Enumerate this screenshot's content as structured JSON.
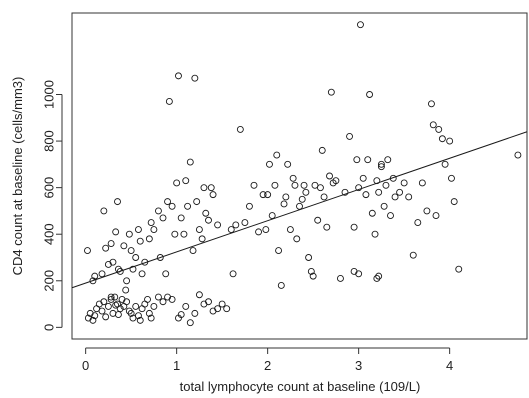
{
  "chart_data": {
    "type": "scatter",
    "title": "",
    "xlabel": "total lymphocyte count at baseline (109/L)",
    "ylabel": "CD4 count at baseline (cells/mm3)",
    "xlim": [
      -0.15,
      4.85
    ],
    "ylim": [
      -50,
      1350
    ],
    "x_ticks": [
      0,
      1,
      2,
      3,
      4
    ],
    "y_ticks": [
      0,
      200,
      400,
      600,
      800,
      1000
    ],
    "point_style": "open-circle",
    "grid": false,
    "legend": "none",
    "colors": {
      "points": "#1a1a1a",
      "line": "#1a1a1a",
      "frame": "#333333"
    },
    "regression_line": {
      "x": [
        -0.15,
        4.85
      ],
      "y": [
        170,
        840
      ]
    },
    "points": [
      [
        0.03,
        40
      ],
      [
        0.05,
        60
      ],
      [
        0.08,
        30
      ],
      [
        0.1,
        50
      ],
      [
        0.12,
        80
      ],
      [
        0.15,
        100
      ],
      [
        0.18,
        70
      ],
      [
        0.2,
        110
      ],
      [
        0.22,
        45
      ],
      [
        0.25,
        90
      ],
      [
        0.28,
        120
      ],
      [
        0.3,
        60
      ],
      [
        0.32,
        130
      ],
      [
        0.35,
        100
      ],
      [
        0.38,
        80
      ],
      [
        0.4,
        120
      ],
      [
        0.42,
        90
      ],
      [
        0.45,
        110
      ],
      [
        0.48,
        70
      ],
      [
        0.5,
        60
      ],
      [
        0.52,
        40
      ],
      [
        0.55,
        90
      ],
      [
        0.58,
        50
      ],
      [
        0.6,
        30
      ],
      [
        0.62,
        80
      ],
      [
        0.65,
        100
      ],
      [
        0.68,
        120
      ],
      [
        0.7,
        60
      ],
      [
        0.72,
        40
      ],
      [
        0.75,
        90
      ],
      [
        0.8,
        130
      ],
      [
        0.85,
        110
      ],
      [
        0.9,
        130
      ],
      [
        0.95,
        120
      ],
      [
        0.28,
        130
      ],
      [
        0.33,
        95
      ],
      [
        0.36,
        55
      ],
      [
        0.02,
        330
      ],
      [
        0.08,
        200
      ],
      [
        0.1,
        220
      ],
      [
        0.18,
        230
      ],
      [
        0.22,
        340
      ],
      [
        0.25,
        270
      ],
      [
        0.28,
        360
      ],
      [
        0.3,
        280
      ],
      [
        0.33,
        410
      ],
      [
        0.35,
        540
      ],
      [
        0.38,
        240
      ],
      [
        0.42,
        350
      ],
      [
        0.45,
        200
      ],
      [
        0.48,
        400
      ],
      [
        0.5,
        330
      ],
      [
        0.52,
        250
      ],
      [
        0.55,
        300
      ],
      [
        0.58,
        420
      ],
      [
        0.6,
        370
      ],
      [
        0.62,
        230
      ],
      [
        0.65,
        280
      ],
      [
        0.7,
        380
      ],
      [
        0.72,
        450
      ],
      [
        0.75,
        420
      ],
      [
        0.8,
        500
      ],
      [
        0.82,
        300
      ],
      [
        0.85,
        470
      ],
      [
        0.88,
        230
      ],
      [
        0.9,
        540
      ],
      [
        0.92,
        970
      ],
      [
        0.95,
        520
      ],
      [
        0.98,
        400
      ],
      [
        0.2,
        500
      ],
      [
        0.44,
        160
      ],
      [
        0.36,
        250
      ],
      [
        1.0,
        620
      ],
      [
        1.02,
        1080
      ],
      [
        1.05,
        470
      ],
      [
        1.08,
        400
      ],
      [
        1.1,
        630
      ],
      [
        1.12,
        520
      ],
      [
        1.15,
        710
      ],
      [
        1.18,
        330
      ],
      [
        1.2,
        1070
      ],
      [
        1.22,
        540
      ],
      [
        1.25,
        420
      ],
      [
        1.28,
        380
      ],
      [
        1.3,
        600
      ],
      [
        1.32,
        490
      ],
      [
        1.35,
        460
      ],
      [
        1.38,
        600
      ],
      [
        1.4,
        570
      ],
      [
        1.45,
        440
      ],
      [
        1.5,
        100
      ],
      [
        1.55,
        80
      ],
      [
        1.6,
        420
      ],
      [
        1.62,
        230
      ],
      [
        1.65,
        440
      ],
      [
        1.7,
        850
      ],
      [
        1.75,
        450
      ],
      [
        1.8,
        520
      ],
      [
        1.85,
        610
      ],
      [
        1.9,
        410
      ],
      [
        1.95,
        570
      ],
      [
        1.98,
        420
      ],
      [
        1.02,
        40
      ],
      [
        1.05,
        55
      ],
      [
        1.1,
        90
      ],
      [
        1.15,
        20
      ],
      [
        1.2,
        60
      ],
      [
        1.25,
        140
      ],
      [
        1.3,
        100
      ],
      [
        1.35,
        110
      ],
      [
        1.4,
        70
      ],
      [
        1.45,
        80
      ],
      [
        2.0,
        570
      ],
      [
        2.02,
        700
      ],
      [
        2.05,
        480
      ],
      [
        2.08,
        610
      ],
      [
        2.1,
        740
      ],
      [
        2.12,
        330
      ],
      [
        2.15,
        180
      ],
      [
        2.18,
        530
      ],
      [
        2.2,
        560
      ],
      [
        2.22,
        700
      ],
      [
        2.25,
        420
      ],
      [
        2.28,
        640
      ],
      [
        2.3,
        610
      ],
      [
        2.32,
        380
      ],
      [
        2.35,
        520
      ],
      [
        2.38,
        550
      ],
      [
        2.4,
        610
      ],
      [
        2.42,
        580
      ],
      [
        2.45,
        300
      ],
      [
        2.48,
        240
      ],
      [
        2.5,
        220
      ],
      [
        2.52,
        610
      ],
      [
        2.55,
        460
      ],
      [
        2.58,
        600
      ],
      [
        2.6,
        760
      ],
      [
        2.62,
        560
      ],
      [
        2.65,
        430
      ],
      [
        2.68,
        650
      ],
      [
        2.7,
        1010
      ],
      [
        2.72,
        620
      ],
      [
        2.75,
        630
      ],
      [
        2.8,
        210
      ],
      [
        2.85,
        580
      ],
      [
        2.9,
        820
      ],
      [
        2.95,
        240
      ],
      [
        2.98,
        720
      ],
      [
        3.0,
        600
      ],
      [
        3.02,
        1300
      ],
      [
        3.05,
        640
      ],
      [
        3.08,
        570
      ],
      [
        3.1,
        720
      ],
      [
        3.12,
        1000
      ],
      [
        3.15,
        490
      ],
      [
        3.18,
        400
      ],
      [
        3.2,
        630
      ],
      [
        3.22,
        580
      ],
      [
        3.25,
        690
      ],
      [
        3.28,
        520
      ],
      [
        3.3,
        610
      ],
      [
        3.32,
        720
      ],
      [
        3.35,
        480
      ],
      [
        3.38,
        640
      ],
      [
        3.4,
        560
      ],
      [
        3.45,
        580
      ],
      [
        3.5,
        620
      ],
      [
        3.55,
        560
      ],
      [
        3.6,
        310
      ],
      [
        3.65,
        450
      ],
      [
        3.7,
        620
      ],
      [
        3.75,
        500
      ],
      [
        3.8,
        960
      ],
      [
        3.82,
        870
      ],
      [
        3.85,
        480
      ],
      [
        3.88,
        850
      ],
      [
        3.92,
        810
      ],
      [
        3.95,
        700
      ],
      [
        4.0,
        800
      ],
      [
        4.02,
        640
      ],
      [
        4.05,
        540
      ],
      [
        4.1,
        250
      ],
      [
        4.75,
        740
      ],
      [
        3.2,
        210
      ],
      [
        3.22,
        220
      ],
      [
        3.25,
        700
      ],
      [
        3.0,
        230
      ],
      [
        2.95,
        430
      ]
    ]
  }
}
